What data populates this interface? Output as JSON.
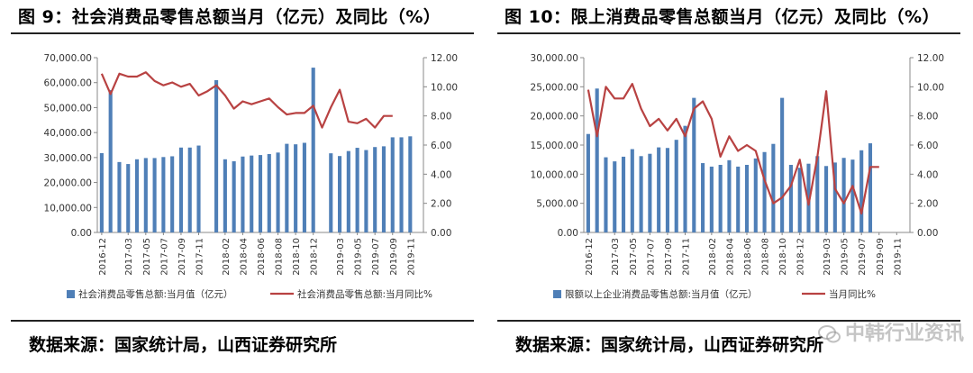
{
  "panels": [
    {
      "title": "图 9：社会消费品零售总额当月（亿元）及同比（%）",
      "source": "数据来源：国家统计局，山西证券研究所"
    },
    {
      "title": "图 10：限上消费品零售总额当月（亿元）及同比（%）",
      "source": "数据来源：国家统计局，山西证券研究所"
    }
  ],
  "watermark": {
    "text": "中韩行业资讯",
    "icon": "wechat-icon"
  },
  "colors": {
    "bar": "#4f7fb7",
    "line": "#b84242",
    "axis": "#888888",
    "text": "#333333"
  },
  "chart_data": [
    {
      "type": "bar",
      "categories": [
        "2016-12",
        "2017-01",
        "2017-02",
        "2017-03",
        "2017-04",
        "2017-05",
        "2017-06",
        "2017-07",
        "2017-08",
        "2017-09",
        "2017-10",
        "2017-11",
        "2017-12",
        "2018-01",
        "2018-02",
        "2018-03",
        "2018-04",
        "2018-05",
        "2018-06",
        "2018-07",
        "2018-08",
        "2018-09",
        "2018-10",
        "2018-11",
        "2018-12",
        "2019-01",
        "2019-02",
        "2019-03",
        "2019-04",
        "2019-05",
        "2019-06",
        "2019-07",
        "2019-08",
        "2019-09",
        "2019-10",
        "2019-11",
        "2019-12"
      ],
      "x_tick_labels": [
        "2016-12",
        "2017-03",
        "2017-05",
        "2017-07",
        "2017-09",
        "2017-11",
        "2018-02",
        "2018-04",
        "2018-06",
        "2018-08",
        "2018-10",
        "2018-12",
        "2019-03",
        "2019-05",
        "2019-07",
        "2019-09",
        "2019-11"
      ],
      "series": [
        {
          "name": "社会消费品零售总额:当月值（亿元）",
          "kind": "bar",
          "axis": "left",
          "values": [
            31757,
            57000,
            28200,
            27400,
            29300,
            29800,
            29800,
            30200,
            30500,
            34000,
            34000,
            34800,
            null,
            61000,
            29300,
            28500,
            30400,
            30800,
            31000,
            31400,
            32000,
            35500,
            35300,
            35900,
            66000,
            null,
            31700,
            30600,
            32600,
            33900,
            33000,
            34200,
            34500,
            38100,
            38100,
            38500,
            null
          ]
        },
        {
          "name": "社会消费品零售总额:当月同比%",
          "kind": "line",
          "axis": "right",
          "values": [
            10.9,
            9.5,
            10.9,
            10.7,
            10.7,
            11.0,
            10.4,
            10.1,
            10.3,
            10.0,
            10.2,
            9.4,
            9.7,
            10.1,
            9.4,
            8.5,
            9.0,
            8.8,
            9.0,
            9.2,
            8.6,
            8.1,
            8.2,
            8.2,
            8.7,
            7.2,
            8.6,
            9.8,
            7.6,
            7.5,
            7.8,
            7.2,
            8.0,
            8.0,
            null,
            null,
            null
          ]
        }
      ],
      "yleft": {
        "min": 0,
        "max": 70000,
        "ticks": [
          "0.00",
          "10,000.00",
          "20,000.00",
          "30,000.00",
          "40,000.00",
          "50,000.00",
          "60,000.00",
          "70,000.00"
        ]
      },
      "yright": {
        "min": 0,
        "max": 12,
        "ticks": [
          "0.00",
          "2.00",
          "4.00",
          "6.00",
          "8.00",
          "10.00",
          "12.00"
        ]
      },
      "legend": [
        "社会消费品零售总额:当月值（亿元）",
        "社会消费品零售总额:当月同比%"
      ]
    },
    {
      "type": "bar",
      "categories": [
        "2016-12",
        "2017-01",
        "2017-02",
        "2017-03",
        "2017-04",
        "2017-05",
        "2017-06",
        "2017-07",
        "2017-08",
        "2017-09",
        "2017-10",
        "2017-11",
        "2017-12",
        "2018-01",
        "2018-02",
        "2018-03",
        "2018-04",
        "2018-05",
        "2018-06",
        "2018-07",
        "2018-08",
        "2018-09",
        "2018-10",
        "2018-11",
        "2018-12",
        "2019-01",
        "2019-02",
        "2019-03",
        "2019-04",
        "2019-05",
        "2019-06",
        "2019-07",
        "2019-08",
        "2019-09",
        "2019-10",
        "2019-11",
        "2019-12"
      ],
      "x_tick_labels": [
        "2016-12",
        "2017-03",
        "2017-05",
        "2017-07",
        "2017-09",
        "2017-11",
        "2018-02",
        "2018-04",
        "2018-06",
        "2018-08",
        "2018-10",
        "2018-12",
        "2019-03",
        "2019-05",
        "2019-07",
        "2019-09",
        "2019-11"
      ],
      "series": [
        {
          "name": "限额以上企业消费品零售总额:当月值（亿元）",
          "kind": "bar",
          "axis": "left",
          "values": [
            16900,
            24700,
            12900,
            12200,
            13000,
            14300,
            13100,
            13500,
            14600,
            14500,
            15900,
            18300,
            23100,
            11900,
            11300,
            11600,
            12400,
            11300,
            11600,
            12700,
            13800,
            15200,
            23100,
            11600,
            11100,
            11800,
            13100,
            11400,
            12000,
            12800,
            12500,
            14100,
            15300,
            null,
            null,
            null,
            null
          ]
        },
        {
          "name": "当月同比%",
          "kind": "line",
          "axis": "right",
          "values": [
            9.8,
            6.6,
            10.0,
            9.2,
            9.2,
            10.2,
            8.5,
            7.3,
            7.8,
            7.0,
            7.8,
            6.6,
            8.5,
            9.0,
            7.8,
            5.2,
            6.6,
            5.6,
            6.0,
            5.6,
            3.6,
            2.0,
            2.4,
            3.2,
            5.0,
            1.9,
            5.2,
            9.7,
            3.0,
            2.0,
            3.2,
            1.3,
            4.5,
            4.5,
            null,
            null,
            null
          ]
        }
      ],
      "yleft": {
        "min": 0,
        "max": 30000,
        "ticks": [
          "0.00",
          "5,000.00",
          "10,000.00",
          "15,000.00",
          "20,000.00",
          "25,000.00",
          "30,000.00"
        ]
      },
      "yright": {
        "min": 0,
        "max": 12,
        "ticks": [
          "0.00",
          "2.00",
          "4.00",
          "6.00",
          "8.00",
          "10.00",
          "12.00"
        ]
      },
      "legend": [
        "限额以上企业消费品零售总额:当月值（亿元）",
        "当月同比%"
      ]
    }
  ]
}
